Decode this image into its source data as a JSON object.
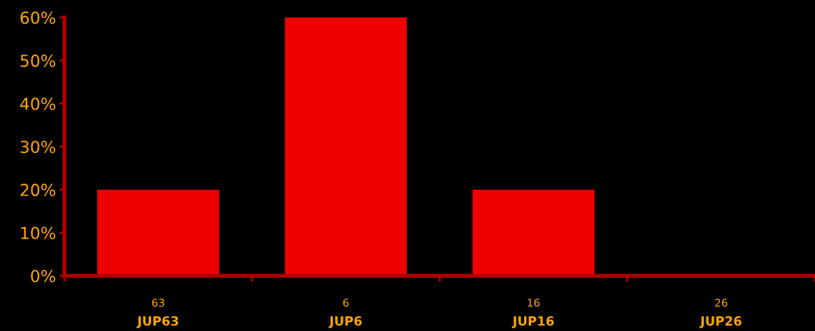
{
  "chart_data": {
    "type": "bar",
    "categories": [
      "63\nJUP63",
      "6\nJUP6",
      "16\nJUP16",
      "26\nJUP26"
    ],
    "values": [
      20,
      60,
      20,
      0
    ],
    "color": "#ee0000",
    "ylim": [
      0,
      60
    ],
    "yticks": [
      {
        "value": 0,
        "label": "0%"
      },
      {
        "value": 10,
        "label": "10%"
      },
      {
        "value": 20,
        "label": "20%"
      },
      {
        "value": 30,
        "label": "30%"
      },
      {
        "value": 40,
        "label": "40%"
      },
      {
        "value": 50,
        "label": "50%"
      },
      {
        "value": 60,
        "label": "60%"
      }
    ],
    "grid": false
  }
}
